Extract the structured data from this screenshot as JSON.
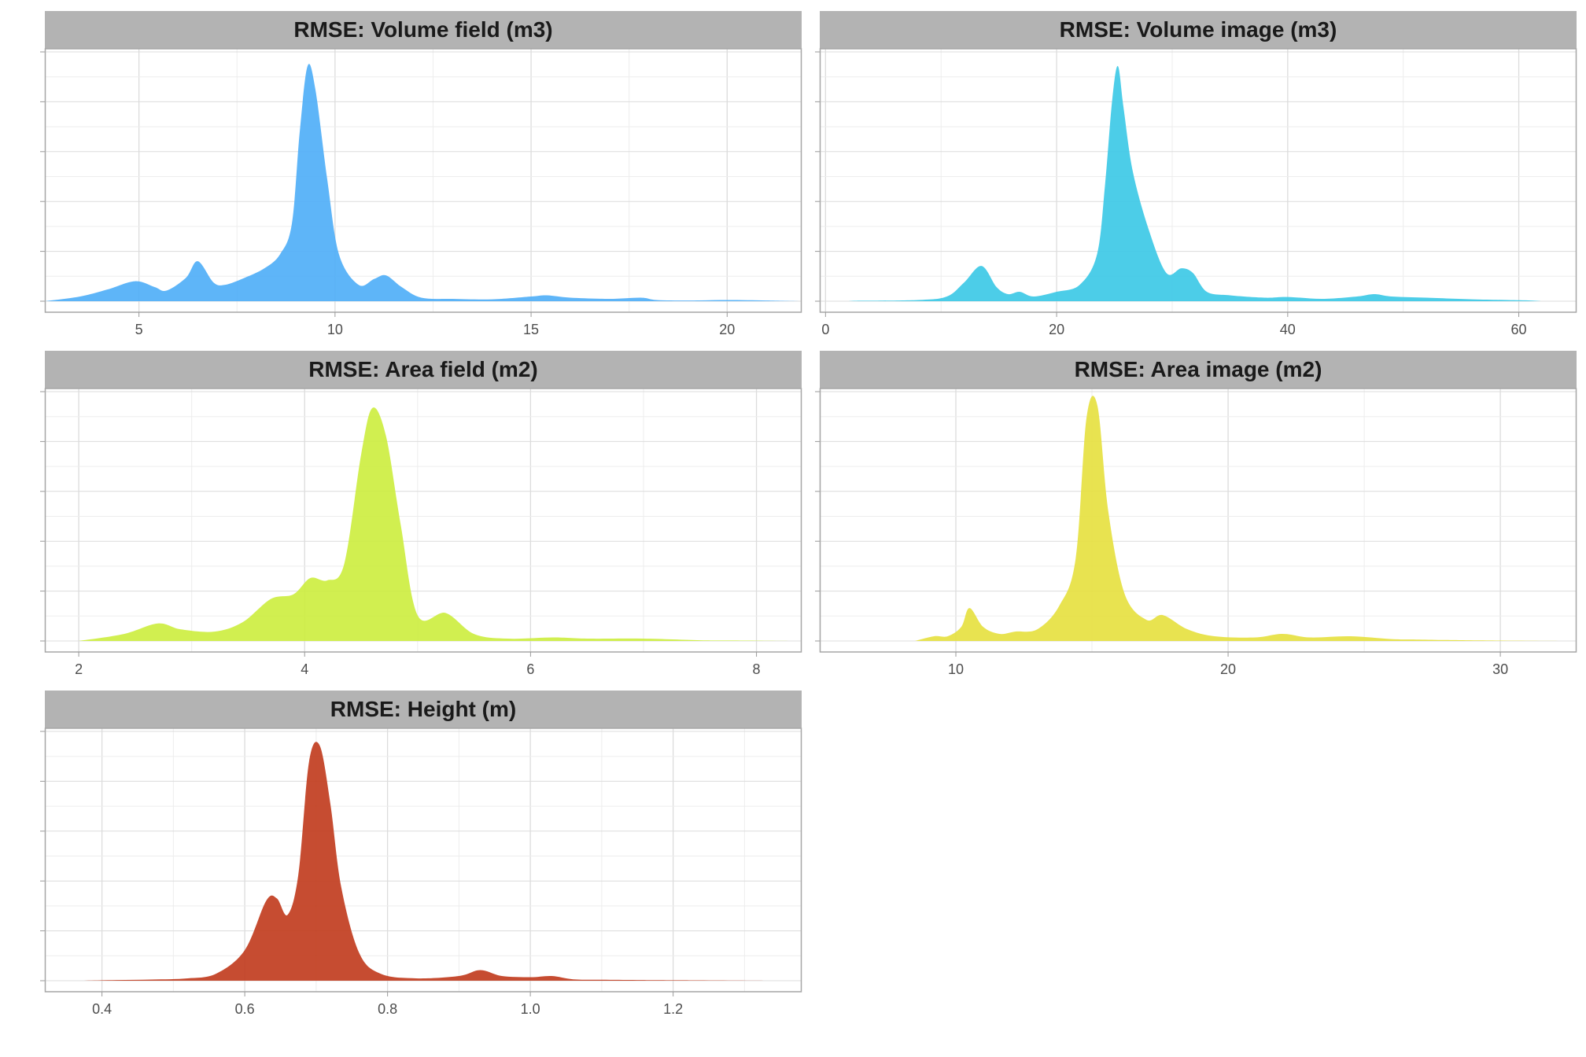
{
  "chart_data": [
    {
      "type": "area",
      "title": "RMSE: Volume field (m3)",
      "color": "#4DADF7",
      "xlim": [
        2.6,
        21.9
      ],
      "x_ticks": [
        5,
        10,
        15,
        20
      ],
      "x": [
        2.6,
        3.5,
        4.2,
        4.9,
        5.4,
        5.7,
        6.2,
        6.5,
        6.9,
        7.2,
        7.7,
        8.2,
        8.6,
        8.9,
        9.1,
        9.3,
        9.5,
        9.8,
        10.1,
        10.6,
        11.0,
        11.3,
        11.7,
        12.2,
        13.0,
        14.0,
        15.0,
        15.4,
        16.0,
        17.0,
        17.8,
        18.2,
        19.0,
        20.0,
        21.0,
        21.9
      ],
      "y": [
        0,
        0.02,
        0.05,
        0.085,
        0.06,
        0.045,
        0.1,
        0.17,
        0.08,
        0.07,
        0.1,
        0.14,
        0.2,
        0.33,
        0.72,
        1.0,
        0.9,
        0.52,
        0.2,
        0.07,
        0.095,
        0.11,
        0.06,
        0.015,
        0.01,
        0.008,
        0.02,
        0.025,
        0.015,
        0.01,
        0.015,
        0.005,
        0.003,
        0.005,
        0.003,
        0
      ],
      "ylim": [
        0,
        1.06
      ]
    },
    {
      "type": "area",
      "title": "RMSE: Volume image (m3)",
      "color": "#38C8E6",
      "xlim": [
        -0.5,
        65
      ],
      "x_ticks": [
        0,
        20,
        40,
        60
      ],
      "x": [
        2,
        3,
        8,
        10.5,
        12,
        13.5,
        14.8,
        15.8,
        16.8,
        18,
        20,
        22,
        23.5,
        24.2,
        24.8,
        25.3,
        25.8,
        26.6,
        28,
        29.5,
        30.8,
        31.8,
        33,
        35,
        38,
        40,
        43,
        46,
        47.5,
        49,
        52,
        56,
        59,
        61,
        62
      ],
      "y": [
        0,
        0.002,
        0.005,
        0.02,
        0.08,
        0.15,
        0.06,
        0.03,
        0.04,
        0.02,
        0.04,
        0.07,
        0.2,
        0.5,
        0.85,
        1.0,
        0.82,
        0.55,
        0.3,
        0.12,
        0.14,
        0.12,
        0.04,
        0.025,
        0.015,
        0.018,
        0.01,
        0.02,
        0.03,
        0.02,
        0.015,
        0.008,
        0.005,
        0.003,
        0
      ],
      "ylim": [
        0,
        1.06
      ]
    },
    {
      "type": "area",
      "title": "RMSE: Area field (m2)",
      "color": "#CCED3D",
      "xlim": [
        1.7,
        8.4
      ],
      "x_ticks": [
        2,
        4,
        6,
        8
      ],
      "x": [
        2.0,
        2.4,
        2.7,
        2.9,
        3.2,
        3.45,
        3.7,
        3.9,
        4.05,
        4.2,
        4.35,
        4.5,
        4.6,
        4.72,
        4.85,
        5.0,
        5.25,
        5.5,
        5.8,
        6.2,
        6.5,
        7.0,
        7.5,
        7.8,
        8.3
      ],
      "y": [
        0,
        0.03,
        0.075,
        0.05,
        0.04,
        0.08,
        0.18,
        0.2,
        0.27,
        0.26,
        0.33,
        0.8,
        1.0,
        0.88,
        0.5,
        0.11,
        0.12,
        0.03,
        0.01,
        0.015,
        0.01,
        0.01,
        0.003,
        0.002,
        0
      ],
      "ylim": [
        0,
        1.07
      ]
    },
    {
      "type": "area",
      "title": "RMSE: Area image (m2)",
      "color": "#E5E03D",
      "xlim": [
        5.0,
        32.8
      ],
      "x_ticks": [
        10,
        20,
        30
      ],
      "x": [
        8.5,
        9.2,
        9.7,
        10.2,
        10.5,
        11.0,
        11.6,
        12.2,
        13.0,
        13.8,
        14.4,
        14.8,
        15.2,
        15.6,
        16.2,
        17.0,
        17.6,
        18.5,
        19.5,
        21,
        22,
        23,
        24.5,
        26,
        27,
        28,
        29.5,
        32.3
      ],
      "y": [
        0,
        0.02,
        0.02,
        0.06,
        0.14,
        0.06,
        0.03,
        0.04,
        0.05,
        0.15,
        0.35,
        0.95,
        1.0,
        0.55,
        0.2,
        0.09,
        0.11,
        0.05,
        0.02,
        0.015,
        0.03,
        0.015,
        0.02,
        0.008,
        0.006,
        0.004,
        0.002,
        0
      ],
      "ylim": [
        0,
        1.06
      ]
    },
    {
      "type": "area",
      "title": "RMSE: Height (m)",
      "color": "#C0391B",
      "xlim": [
        0.32,
        1.38
      ],
      "x_ticks": [
        0.4,
        0.6,
        0.8,
        1.0,
        1.2
      ],
      "x": [
        0.37,
        0.42,
        0.47,
        0.52,
        0.56,
        0.6,
        0.63,
        0.645,
        0.66,
        0.675,
        0.69,
        0.705,
        0.72,
        0.735,
        0.76,
        0.79,
        0.84,
        0.9,
        0.93,
        0.96,
        1.0,
        1.03,
        1.06,
        1.1,
        1.15,
        1.21,
        1.33
      ],
      "y": [
        0,
        0.003,
        0.005,
        0.01,
        0.03,
        0.13,
        0.34,
        0.35,
        0.28,
        0.45,
        0.93,
        1.0,
        0.75,
        0.4,
        0.12,
        0.03,
        0.01,
        0.02,
        0.045,
        0.02,
        0.015,
        0.02,
        0.006,
        0.004,
        0.003,
        0.002,
        0
      ],
      "ylim": [
        0,
        1.06
      ]
    }
  ]
}
